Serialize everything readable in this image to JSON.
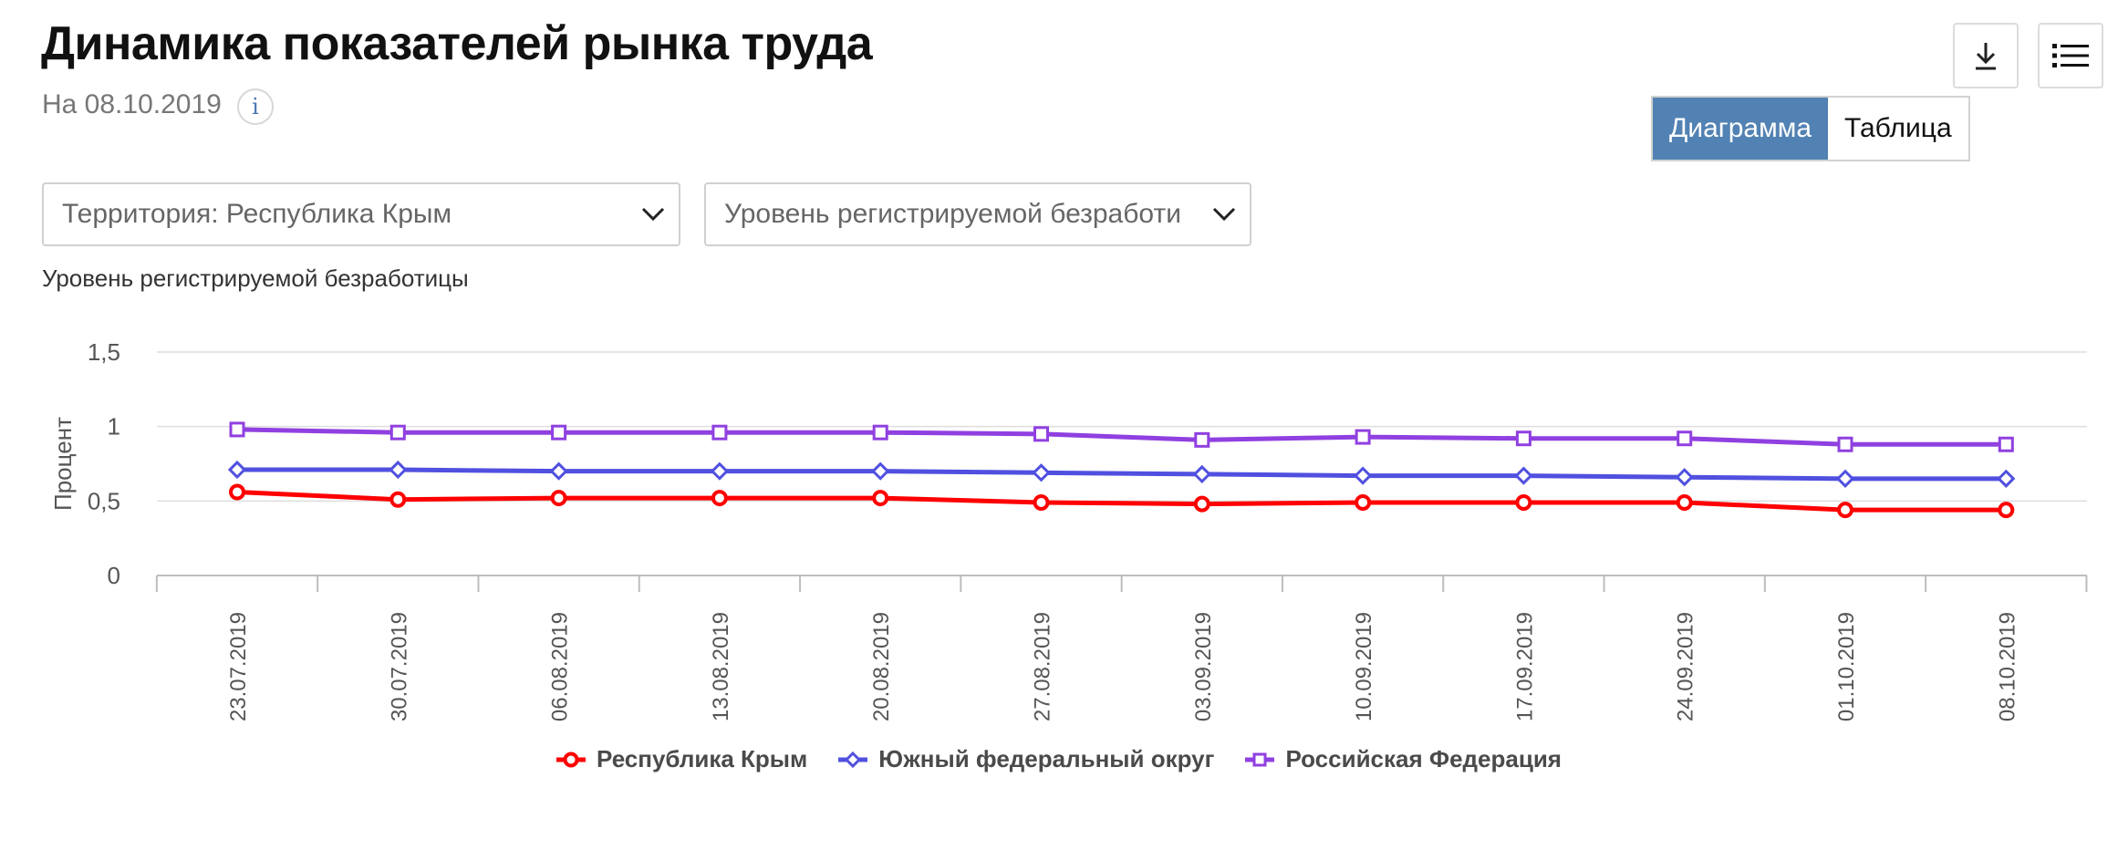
{
  "header": {
    "title": "Динамика показателей рынка труда",
    "date_label": "На 08.10.2019",
    "info_icon": "i"
  },
  "toolbar": {
    "download_icon": "download-icon",
    "menu_icon": "list-menu-icon"
  },
  "view_toggle": {
    "chart_label": "Диаграмма",
    "table_label": "Таблица",
    "active": "chart"
  },
  "filters": {
    "territory": "Территория: Республика Крым",
    "indicator": "Уровень регистрируемой безработи"
  },
  "chart_caption": "Уровень регистрируемой безработицы",
  "colors": {
    "crimea": "#ff0000",
    "south": "#5050e0",
    "russia": "#9040e0",
    "active_toggle": "#5282b3"
  },
  "chart_data": {
    "type": "line",
    "title": "",
    "xlabel": "",
    "ylabel": "Процент",
    "ylim": [
      0,
      1.5
    ],
    "yticks": [
      "0",
      "0,5",
      "1",
      "1,5"
    ],
    "ytick_values": [
      0,
      0.5,
      1,
      1.5
    ],
    "grid": true,
    "legend_position": "bottom-center",
    "categories": [
      "23.07.2019",
      "30.07.2019",
      "06.08.2019",
      "13.08.2019",
      "20.08.2019",
      "27.08.2019",
      "03.09.2019",
      "10.09.2019",
      "17.09.2019",
      "24.09.2019",
      "01.10.2019",
      "08.10.2019"
    ],
    "series": [
      {
        "name": "Республика Крым",
        "marker": "circle",
        "color": "#ff0000",
        "values": [
          0.56,
          0.51,
          0.52,
          0.52,
          0.52,
          0.49,
          0.48,
          0.49,
          0.49,
          0.49,
          0.44,
          0.44
        ]
      },
      {
        "name": "Южный федеральный округ",
        "marker": "diamond",
        "color": "#5050e0",
        "values": [
          0.71,
          0.71,
          0.7,
          0.7,
          0.7,
          0.69,
          0.68,
          0.67,
          0.67,
          0.66,
          0.65,
          0.65
        ]
      },
      {
        "name": "Российская Федерация",
        "marker": "square",
        "color": "#9040e0",
        "values": [
          0.98,
          0.96,
          0.96,
          0.96,
          0.96,
          0.95,
          0.91,
          0.93,
          0.92,
          0.92,
          0.88,
          0.88
        ]
      }
    ]
  }
}
